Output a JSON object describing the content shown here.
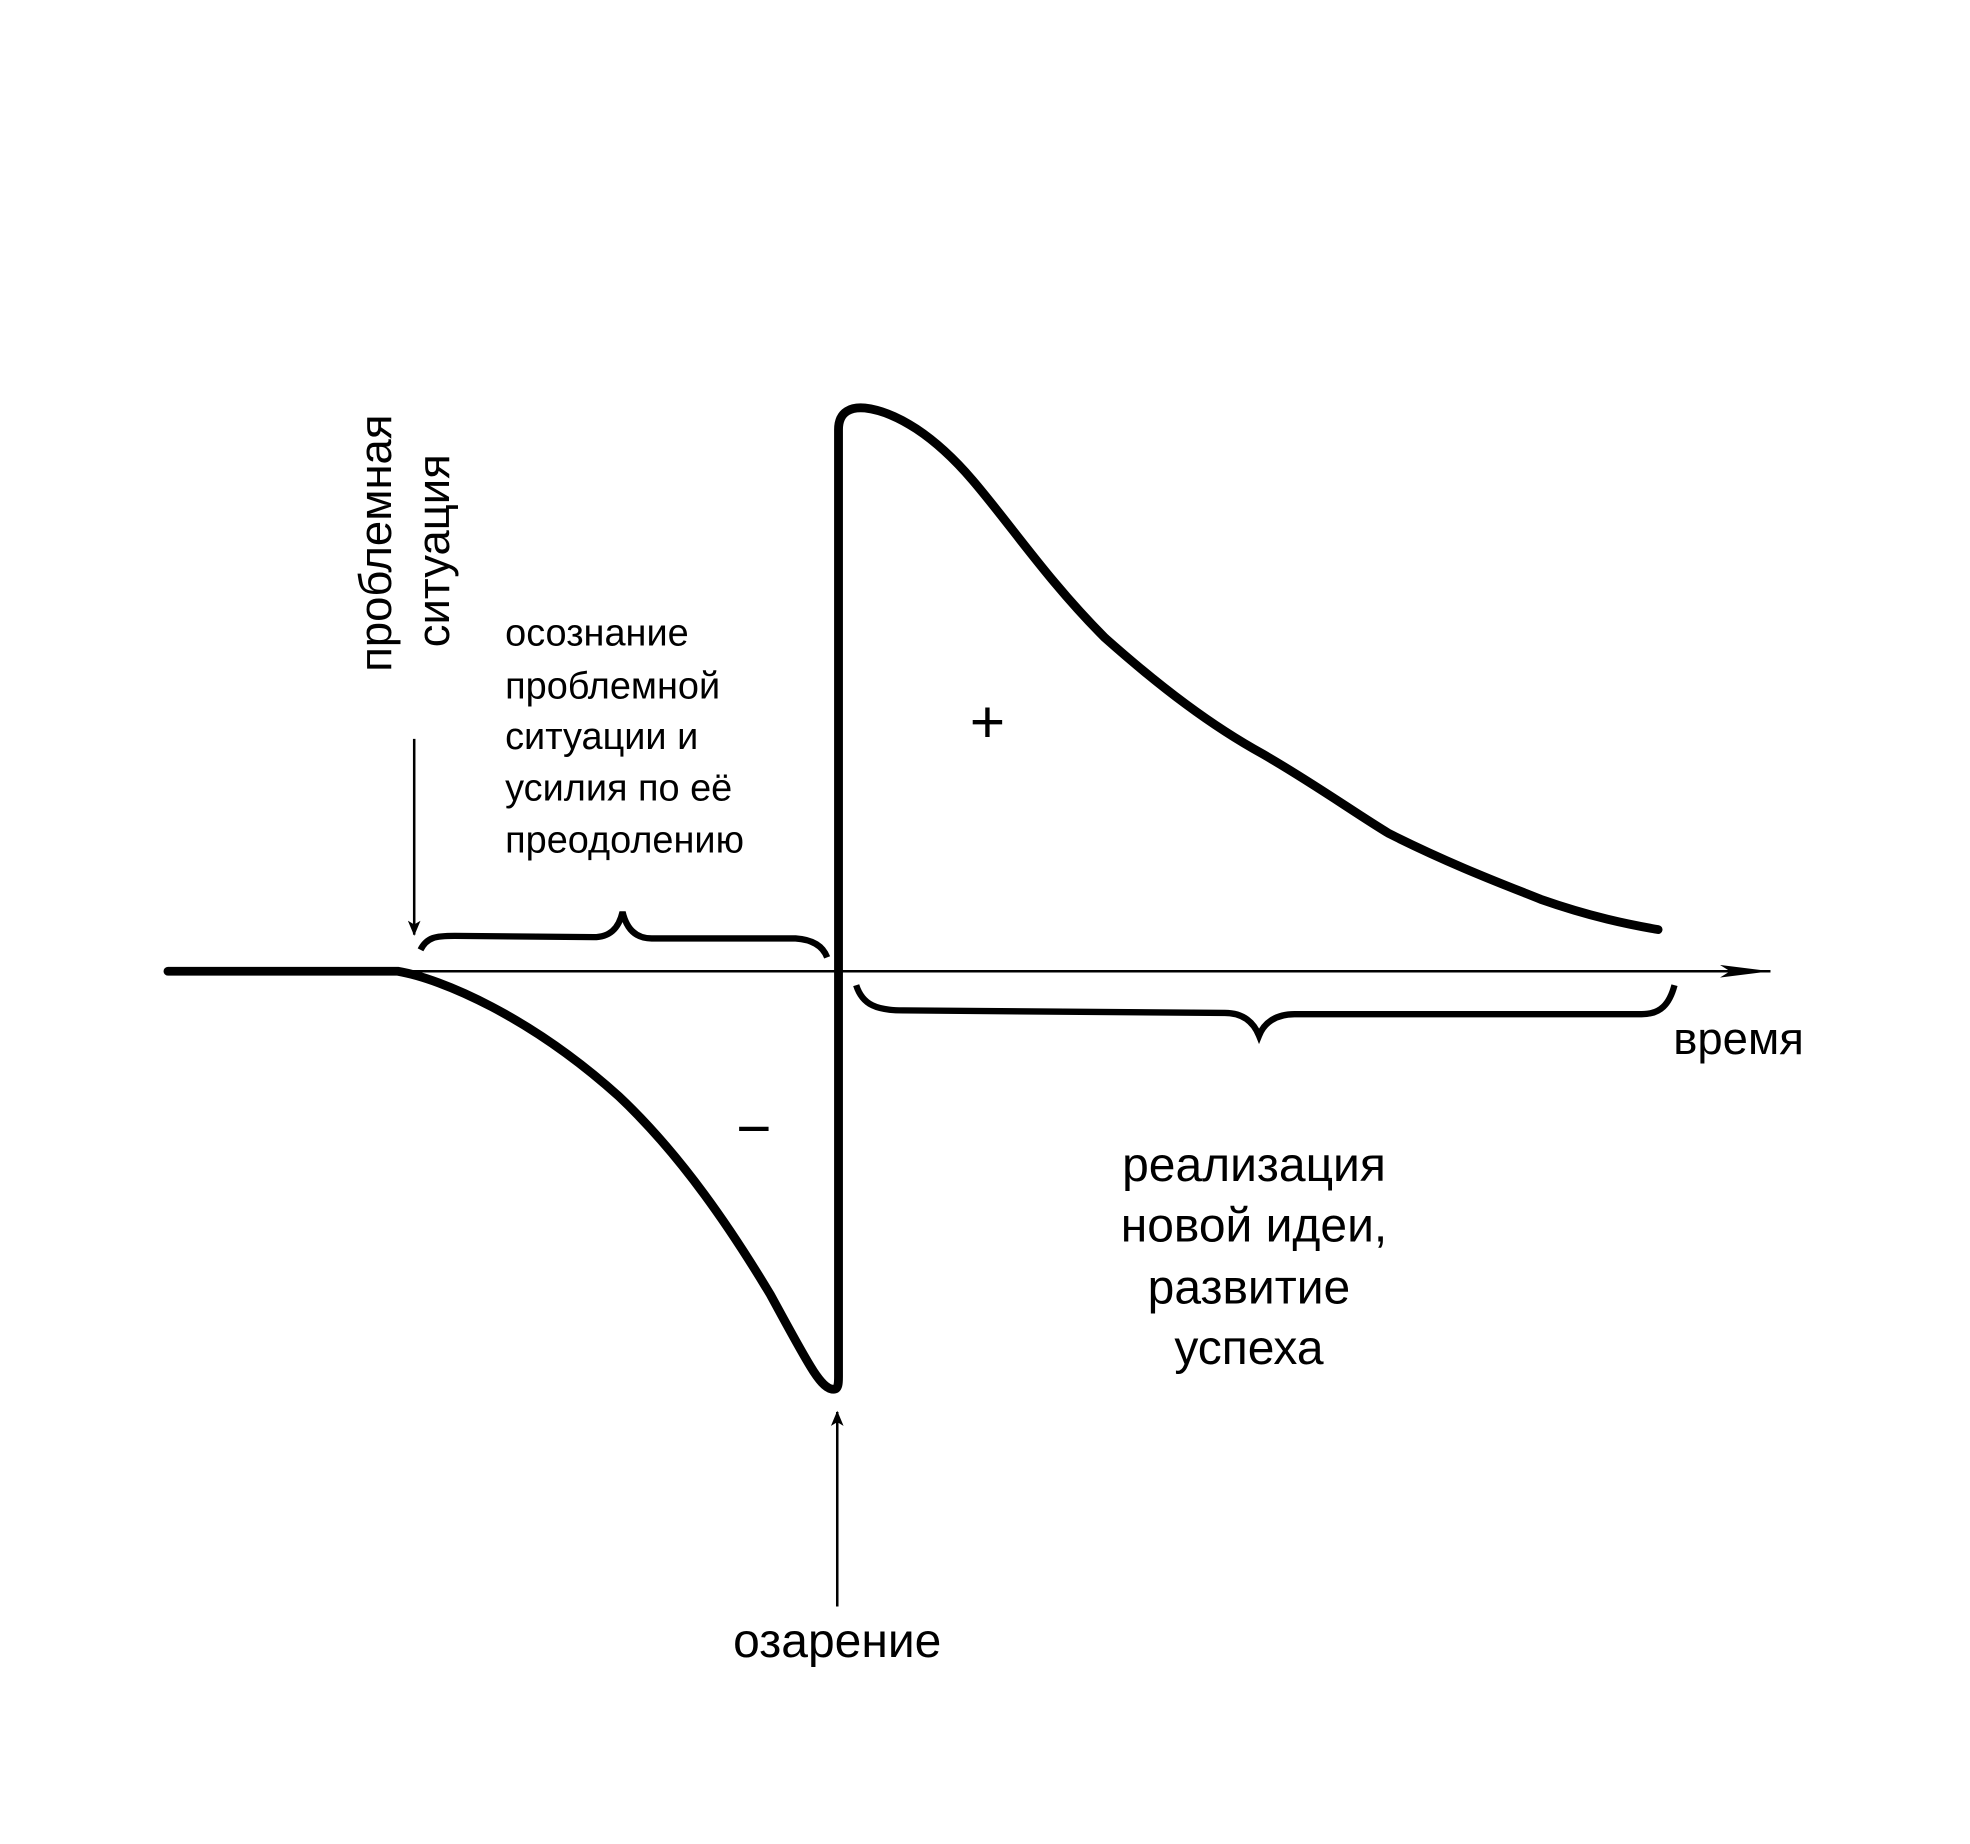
{
  "labels": {
    "problem_situation": [
      "проблемная",
      "ситуация"
    ],
    "awareness": [
      "осознание",
      "проблемной",
      "ситуации и",
      "усилия по её",
      "преодолению"
    ],
    "plus": "+",
    "minus": "−",
    "time": "время",
    "realization": [
      "реализация",
      "новой идеи,",
      "развитие",
      "успеха"
    ],
    "insight": "озарение"
  }
}
